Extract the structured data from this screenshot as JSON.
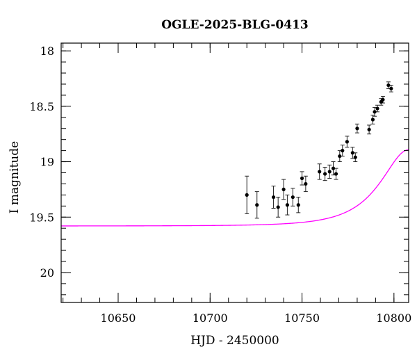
{
  "chart_data": {
    "type": "scatter",
    "title": "OGLE-2025-BLG-0413",
    "xlabel": "HJD - 2450000",
    "ylabel": "I magnitude",
    "xlim": [
      10619,
      10808
    ],
    "ylim": [
      20.27,
      17.93
    ],
    "y_inverted": true,
    "x_ticks": [
      10650,
      10700,
      10750,
      10800
    ],
    "x_tick_labels": [
      "10650",
      "10700",
      "10750",
      "10800"
    ],
    "x_minor_step": 10,
    "y_ticks": [
      18,
      18.5,
      19,
      19.5,
      20
    ],
    "y_tick_labels": [
      "18",
      "18.5",
      "19",
      "19.5",
      "20"
    ],
    "y_minor_step": 0.1,
    "grid": false,
    "colors": {
      "points": "#000000",
      "errorbars": "#222222",
      "model": "#ff00ff"
    },
    "series": [
      {
        "type": "scatter",
        "x": [
          10720,
          10725.5,
          10734.5,
          10737,
          10740,
          10742,
          10745,
          10748,
          10750,
          10752,
          10759.5,
          10762.5,
          10765,
          10767,
          10768.5,
          10770.5,
          10772,
          10774.5,
          10777.5,
          10779,
          10780,
          10786.5,
          10788.5,
          10789.5,
          10791,
          10793,
          10794,
          10797,
          10798.5
        ],
        "y": [
          19.3,
          19.39,
          19.32,
          19.41,
          19.25,
          19.39,
          19.32,
          19.39,
          19.15,
          19.2,
          19.09,
          19.11,
          19.09,
          19.06,
          19.11,
          18.95,
          18.9,
          18.82,
          18.92,
          18.96,
          18.7,
          18.71,
          18.62,
          18.55,
          18.52,
          18.46,
          18.44,
          18.31,
          18.34
        ],
        "err": [
          0.17,
          0.12,
          0.1,
          0.09,
          0.09,
          0.09,
          0.08,
          0.07,
          0.06,
          0.07,
          0.07,
          0.06,
          0.06,
          0.06,
          0.05,
          0.05,
          0.05,
          0.05,
          0.05,
          0.04,
          0.04,
          0.04,
          0.04,
          0.04,
          0.03,
          0.03,
          0.03,
          0.03,
          0.03
        ]
      },
      {
        "type": "line",
        "model": {
          "baseline_mag": 19.58,
          "t0": 10808,
          "u0": 0.6,
          "tE": 23.8
        }
      }
    ]
  }
}
